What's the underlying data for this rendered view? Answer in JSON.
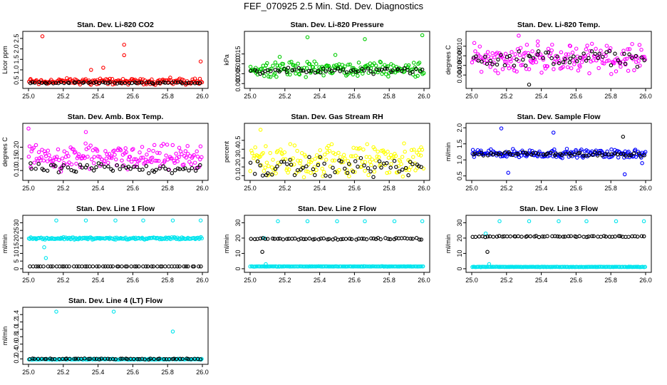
{
  "page_title": "FEF_070925  2.5 Min. Std. Dev. Diagnostics",
  "chart_data": [
    {
      "type": "scatter",
      "title": "Stan. Dev. Li-820 CO2",
      "ylabel": "Licor ppm",
      "xlim": [
        25.0,
        26.0
      ],
      "ylim": [
        0.25,
        2.7
      ],
      "xticks": [
        "25.0",
        "25.2",
        "25.4",
        "25.6",
        "25.8",
        "26.0"
      ],
      "yticks": [
        "0.5",
        "1.0",
        "1.5",
        "2.0",
        "2.5"
      ],
      "color": "#ff0000",
      "series": [
        {
          "color": "#ff0000",
          "base": 0.45,
          "spread": 0.12,
          "outliers": [
            [
              25.08,
              2.6
            ],
            [
              25.55,
              2.2
            ],
            [
              25.55,
              1.7
            ],
            [
              25.99,
              1.4
            ],
            [
              25.43,
              1.1
            ],
            [
              25.36,
              1.0
            ]
          ]
        },
        {
          "color": "#000000",
          "base": 0.38,
          "spread": 0.03,
          "outliers": []
        }
      ]
    },
    {
      "type": "scatter",
      "title": "Stan. Dev. Li-820 Pressure",
      "ylabel": "kPa",
      "xlim": [
        25.0,
        26.0
      ],
      "ylim": [
        -0.001,
        0.025
      ],
      "xticks": [
        "25.0",
        "25.2",
        "25.4",
        "25.6",
        "25.8",
        "26.0"
      ],
      "yticks": [
        "0.000",
        "0.005",
        "0.010",
        "0.015"
      ],
      "color": "#00cc00",
      "series": [
        {
          "color": "#00cc00",
          "base": 0.0075,
          "spread": 0.0028,
          "outliers": [
            [
              25.33,
              0.0235
            ],
            [
              25.66,
              0.0225
            ],
            [
              25.99,
              0.0245
            ],
            [
              25.17,
              0.0135
            ],
            [
              25.49,
              0.0145
            ]
          ]
        },
        {
          "color": "#000000",
          "base": 0.0065,
          "spread": 0.0012,
          "outliers": []
        }
      ]
    },
    {
      "type": "scatter",
      "title": "Stan. Dev. Li-820 Temp.",
      "ylabel": "degrees C",
      "xlim": [
        25.0,
        26.0
      ],
      "ylim": [
        0.0018,
        0.0125
      ],
      "xticks": [
        "25.0",
        "25.2",
        "25.4",
        "25.6",
        "25.8",
        "26.0"
      ],
      "yticks": [
        "0.004",
        "0.006",
        "0.008",
        "0.010"
      ],
      "color": "#ff00ff",
      "series": [
        {
          "color": "#ff00ff",
          "base": 0.0075,
          "spread": 0.0022,
          "outliers": [
            [
              25.27,
              0.0122
            ],
            [
              25.38,
              0.011
            ]
          ]
        },
        {
          "color": "#000000",
          "base": 0.0075,
          "spread": 0.0012,
          "outliers": [
            [
              25.33,
              0.002
            ]
          ]
        }
      ]
    },
    {
      "type": "scatter",
      "title": "Stan. Dev. Amb. Box Temp.",
      "ylabel": "degrees C",
      "xlim": [
        25.0,
        26.0
      ],
      "ylim": [
        0.07,
        0.29
      ],
      "xticks": [
        "25.0",
        "25.2",
        "25.4",
        "25.6",
        "25.8",
        "26.0"
      ],
      "yticks": [
        "0.10",
        "0.15",
        "0.20"
      ],
      "color": "#ff00ff",
      "series": [
        {
          "color": "#ff00ff",
          "base": 0.155,
          "spread": 0.04,
          "outliers": [
            [
              25.0,
              0.28
            ],
            [
              25.33,
              0.265
            ]
          ]
        },
        {
          "color": "#000000",
          "base": 0.11,
          "spread": 0.015,
          "outliers": []
        }
      ]
    },
    {
      "type": "scatter",
      "title": "Stan. Dev. Gas Stream RH",
      "ylabel": "percent",
      "xlim": [
        25.0,
        26.0
      ],
      "ylim": [
        0.08,
        0.66
      ],
      "xticks": [
        "25.0",
        "25.2",
        "25.4",
        "25.6",
        "25.8",
        "26.0"
      ],
      "yticks": [
        "0.1",
        "0.2",
        "0.3",
        "0.4",
        "0.5"
      ],
      "color": "#ffff00",
      "series": [
        {
          "color": "#ffff00",
          "base": 0.27,
          "spread": 0.14,
          "outliers": [
            [
              25.06,
              0.62
            ]
          ]
        },
        {
          "color": "#000000",
          "base": 0.2,
          "spread": 0.08,
          "outliers": []
        }
      ]
    },
    {
      "type": "scatter",
      "title": "Stan. Dev. Sample Flow",
      "ylabel": "ml/min",
      "xlim": [
        25.0,
        26.0
      ],
      "ylim": [
        0.45,
        2.05
      ],
      "xticks": [
        "25.0",
        "25.2",
        "25.4",
        "25.6",
        "25.8",
        "26.0"
      ],
      "yticks": [
        "0.5",
        "1.0",
        "1.5",
        "2.0"
      ],
      "color": "#0000ff",
      "series": [
        {
          "color": "#0000ff",
          "base": 1.2,
          "spread": 0.1,
          "outliers": [
            [
              25.17,
              1.98
            ],
            [
              25.47,
              1.85
            ],
            [
              25.88,
              0.55
            ],
            [
              25.98,
              0.9
            ],
            [
              25.21,
              0.6
            ]
          ]
        },
        {
          "color": "#000000",
          "base": 1.18,
          "spread": 0.05,
          "outliers": [
            [
              25.87,
              1.72
            ]
          ]
        }
      ]
    },
    {
      "type": "scatter",
      "title": "Stan. Dev. Line 1 Flow",
      "ylabel": "ml/min",
      "xlim": [
        25.0,
        26.0
      ],
      "ylim": [
        -0.5,
        33
      ],
      "xticks": [
        "25.0",
        "25.2",
        "25.4",
        "25.6",
        "25.8",
        "26.0"
      ],
      "yticks": [
        "0",
        "5",
        "10",
        "15",
        "20",
        "25",
        "30"
      ],
      "color": "#00e5ee",
      "series": [
        {
          "color": "#00e5ee",
          "base": 19.8,
          "spread": 0.6,
          "outliers": [
            [
              25.16,
              31.5
            ],
            [
              25.33,
              31.5
            ],
            [
              25.5,
              31.5
            ],
            [
              25.66,
              31.5
            ],
            [
              25.83,
              31.5
            ],
            [
              25.99,
              31.5
            ],
            [
              25.09,
              14
            ],
            [
              25.1,
              7
            ]
          ]
        },
        {
          "color": "#000000",
          "base": 1.5,
          "spread": 0.0,
          "outliers": []
        }
      ]
    },
    {
      "type": "scatter",
      "title": "Stan. Dev. Line 2 Flow",
      "ylabel": "ml/min",
      "xlim": [
        25.0,
        26.0
      ],
      "ylim": [
        -0.5,
        33
      ],
      "xticks": [
        "25.0",
        "25.2",
        "25.4",
        "25.6",
        "25.8",
        "26.0"
      ],
      "yticks": [
        "0",
        "10",
        "20",
        "30"
      ],
      "color": "#00e5ee",
      "series": [
        {
          "color": "#00e5ee",
          "base": 1.5,
          "spread": 0.1,
          "outliers": [
            [
              25.16,
              31
            ],
            [
              25.33,
              31
            ],
            [
              25.5,
              31
            ],
            [
              25.66,
              31
            ],
            [
              25.83,
              31
            ],
            [
              25.99,
              31
            ],
            [
              25.08,
              20
            ],
            [
              25.09,
              3
            ]
          ]
        },
        {
          "color": "#000000",
          "base": 19.5,
          "spread": 0.4,
          "outliers": [
            [
              25.07,
              11
            ]
          ]
        }
      ]
    },
    {
      "type": "scatter",
      "title": "Stan. Dev. Line 3 Flow",
      "ylabel": "ml/min",
      "xlim": [
        25.0,
        26.0
      ],
      "ylim": [
        -0.5,
        33
      ],
      "xticks": [
        "25.0",
        "25.2",
        "25.4",
        "25.6",
        "25.8",
        "26.0"
      ],
      "yticks": [
        "0",
        "10",
        "20",
        "30"
      ],
      "color": "#00e5ee",
      "series": [
        {
          "color": "#00e5ee",
          "base": 1.2,
          "spread": 0.1,
          "outliers": [
            [
              25.16,
              31
            ],
            [
              25.33,
              31
            ],
            [
              25.5,
              31
            ],
            [
              25.66,
              31
            ],
            [
              25.83,
              31
            ],
            [
              25.99,
              31
            ],
            [
              25.08,
              23
            ],
            [
              25.1,
              3
            ]
          ]
        },
        {
          "color": "#000000",
          "base": 21.0,
          "spread": 0.3,
          "outliers": [
            [
              25.09,
              11
            ]
          ]
        }
      ]
    },
    {
      "type": "scatter",
      "title": "Stan. Dev. Line 4 (LT) Flow",
      "ylabel": "ml/min",
      "xlim": [
        25.0,
        26.0
      ],
      "ylim": [
        0.13,
        1.52
      ],
      "xticks": [
        "25.0",
        "25.2",
        "25.4",
        "25.6",
        "25.8",
        "26.0"
      ],
      "yticks": [
        "0.2",
        "0.4",
        "0.6",
        "0.8",
        "1.0",
        "1.2",
        "1.4"
      ],
      "color": "#00e5ee",
      "series": [
        {
          "color": "#00e5ee",
          "base": 0.19,
          "spread": 0.01,
          "outliers": [
            [
              25.16,
              1.48
            ],
            [
              25.49,
              1.48
            ],
            [
              25.83,
              0.94
            ]
          ]
        },
        {
          "color": "#000000",
          "base": 0.2,
          "spread": 0.01,
          "outliers": []
        }
      ]
    }
  ]
}
